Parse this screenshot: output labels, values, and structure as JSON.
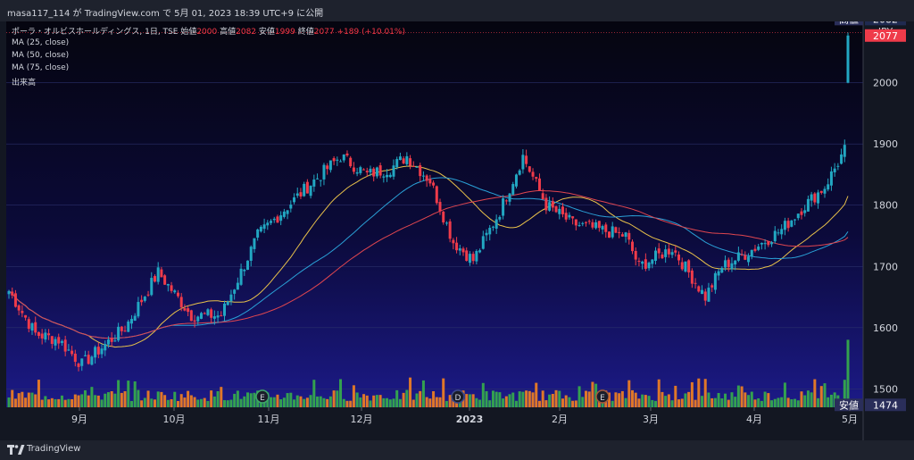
{
  "header": {
    "publish_text": "masa117_114 が TradingView.com で 5月 01, 2023 18:39 UTC+9 に公開"
  },
  "legend": {
    "symbol": "ポーラ・オルビスホールディングス, 1日, TSE",
    "open_label": "始値",
    "open_value": "2000",
    "high_label": "高値",
    "high_value": "2082",
    "low_label": "安値",
    "low_value": "1999",
    "close_label": "終値",
    "close_value": "2077",
    "change": "+189 (+10.01%)",
    "ma1": "MA (25, close)",
    "ma2": "MA (50, close)",
    "ma3": "MA (75, close)",
    "volume": "出来高"
  },
  "price_axis": {
    "currency": "JPY",
    "ticks": [
      "2000",
      "1900",
      "1800",
      "1700",
      "1600",
      "1500"
    ],
    "high_tag": "高値",
    "high_value": "2082",
    "last_value": "2077",
    "low_tag": "安値",
    "low_value": "1474"
  },
  "time_axis": {
    "labels": [
      "9月",
      "10月",
      "11月",
      "12月",
      "2023",
      "2月",
      "3月",
      "4月",
      "5月"
    ]
  },
  "events": [
    "E",
    "D",
    "E"
  ],
  "footer": {
    "brand": "TradingView"
  },
  "colors": {
    "up": "#22a7c2",
    "down": "#ef3b4a",
    "ma25": "#e8c14a",
    "ma50": "#2aa0d6",
    "ma75": "#e0464f",
    "vol_up": "#36b04a",
    "vol_down": "#f5821f"
  },
  "chart_data": {
    "type": "candlestick",
    "ylim": [
      1470,
      2100
    ],
    "x": [
      "9月",
      "10月",
      "11月",
      "12月",
      "2023",
      "2月",
      "3月",
      "4月",
      "5月"
    ],
    "close_keypoints": [
      [
        0,
        1660
      ],
      [
        8,
        1590
      ],
      [
        15,
        1580
      ],
      [
        22,
        1540
      ],
      [
        35,
        1600
      ],
      [
        45,
        1690
      ],
      [
        55,
        1620
      ],
      [
        64,
        1620
      ],
      [
        75,
        1750
      ],
      [
        90,
        1830
      ],
      [
        100,
        1880
      ],
      [
        108,
        1850
      ],
      [
        115,
        1860
      ],
      [
        120,
        1880
      ],
      [
        127,
        1840
      ],
      [
        134,
        1740
      ],
      [
        140,
        1710
      ],
      [
        148,
        1790
      ],
      [
        155,
        1880
      ],
      [
        162,
        1800
      ],
      [
        170,
        1770
      ],
      [
        178,
        1760
      ],
      [
        186,
        1750
      ],
      [
        190,
        1700
      ],
      [
        200,
        1730
      ],
      [
        210,
        1650
      ],
      [
        215,
        1700
      ],
      [
        222,
        1720
      ],
      [
        233,
        1760
      ],
      [
        240,
        1800
      ],
      [
        246,
        1830
      ],
      [
        249,
        1860
      ],
      [
        252,
        1890
      ],
      [
        253,
        2077
      ]
    ],
    "ma_series": [
      {
        "name": "MA (25, close)"
      },
      {
        "name": "MA (50, close)"
      },
      {
        "name": "MA (75, close)"
      }
    ],
    "last": {
      "open": 2000,
      "high": 2082,
      "low": 1999,
      "close": 2077
    }
  }
}
